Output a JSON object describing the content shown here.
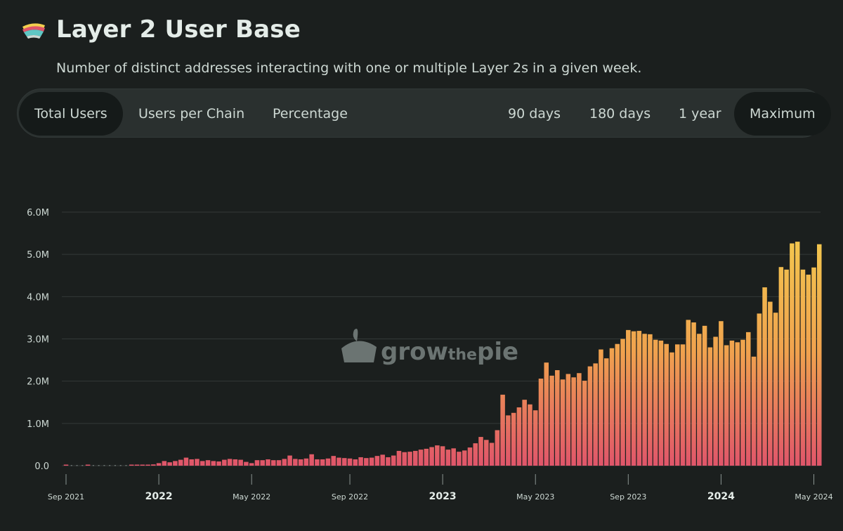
{
  "header": {
    "title": "Layer 2 User Base",
    "subtitle": "Number of distinct addresses interacting with one or multiple Layer 2s in a given week."
  },
  "tabs_left": [
    "Total Users",
    "Users per Chain",
    "Percentage"
  ],
  "tabs_right": [
    "90 days",
    "180 days",
    "1 year",
    "Maximum"
  ],
  "active_left": "Total Users",
  "active_right": "Maximum",
  "watermark": {
    "part1": "grow",
    "part2": "the",
    "part3": "pie"
  },
  "colors": {
    "bar_top": "#f3cf4e",
    "bar_bottom": "#e0556a",
    "background": "#1b1f1e",
    "grid": "#343938"
  },
  "chart_data": {
    "type": "bar",
    "title": "Layer 2 User Base",
    "xlabel": "",
    "ylabel": "",
    "ylim": [
      0,
      6000000
    ],
    "y_ticks": [
      "0.0",
      "1.0M",
      "2.0M",
      "3.0M",
      "4.0M",
      "5.0M",
      "6.0M"
    ],
    "x_ticks": [
      {
        "label": "Sep 2021",
        "index": 0,
        "bold": false
      },
      {
        "label": "2022",
        "index": 17,
        "bold": true
      },
      {
        "label": "May 2022",
        "index": 34,
        "bold": false
      },
      {
        "label": "Sep 2022",
        "index": 52,
        "bold": false
      },
      {
        "label": "2023",
        "index": 69,
        "bold": true
      },
      {
        "label": "May 2023",
        "index": 86,
        "bold": false
      },
      {
        "label": "Sep 2023",
        "index": 103,
        "bold": false
      },
      {
        "label": "2024",
        "index": 120,
        "bold": true
      },
      {
        "label": "May 2024",
        "index": 137,
        "bold": false
      }
    ],
    "values": [
      20000,
      0,
      0,
      0,
      20000,
      0,
      0,
      0,
      0,
      0,
      0,
      0,
      10000,
      20000,
      20000,
      20000,
      30000,
      60000,
      110000,
      80000,
      110000,
      140000,
      190000,
      150000,
      160000,
      110000,
      130000,
      110000,
      100000,
      140000,
      160000,
      150000,
      140000,
      90000,
      60000,
      130000,
      130000,
      150000,
      130000,
      130000,
      160000,
      240000,
      160000,
      150000,
      170000,
      270000,
      150000,
      150000,
      170000,
      230000,
      190000,
      180000,
      170000,
      150000,
      200000,
      180000,
      190000,
      230000,
      260000,
      200000,
      240000,
      350000,
      320000,
      330000,
      350000,
      380000,
      400000,
      440000,
      480000,
      460000,
      380000,
      410000,
      330000,
      360000,
      430000,
      530000,
      680000,
      610000,
      540000,
      840000,
      1680000,
      1190000,
      1250000,
      1380000,
      1560000,
      1450000,
      1310000,
      2060000,
      2440000,
      2130000,
      2260000,
      2040000,
      2170000,
      2090000,
      2190000,
      2010000,
      2350000,
      2420000,
      2750000,
      2540000,
      2780000,
      2880000,
      3000000,
      3210000,
      3180000,
      3190000,
      3120000,
      3110000,
      2980000,
      2960000,
      2880000,
      2680000,
      2870000,
      2870000,
      3450000,
      3390000,
      3120000,
      3310000,
      2800000,
      3050000,
      3420000,
      2850000,
      2960000,
      2920000,
      2980000,
      3160000,
      2580000,
      3600000,
      4220000,
      3880000,
      3620000,
      4700000,
      4640000,
      5260000,
      5300000,
      4640000,
      4520000,
      4690000,
      5240000
    ]
  }
}
